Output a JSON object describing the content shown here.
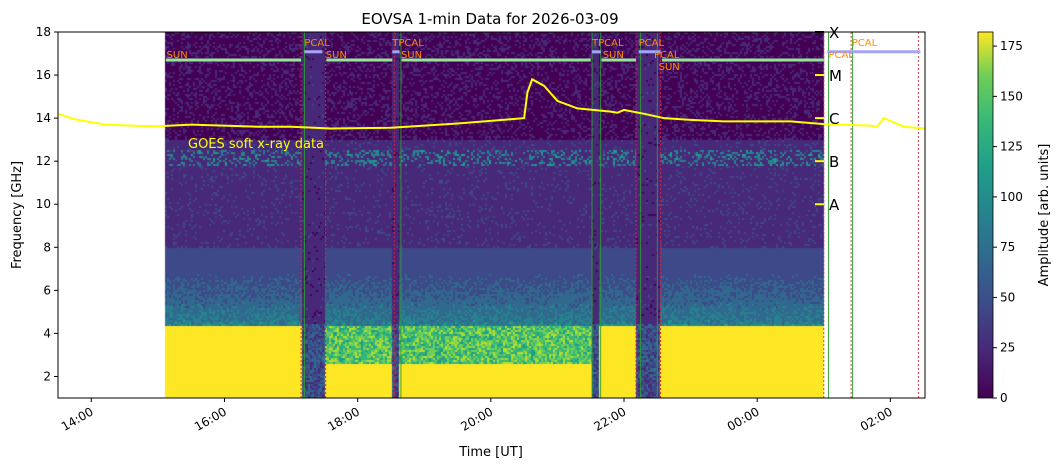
{
  "chart_data": {
    "type": "heatmap",
    "title": "EOVSA 1-min Data for 2026-03-09",
    "xlabel": "Time [UT]",
    "ylabel": "Frequency [GHz]",
    "colorbar_label": "Amplitude [arb. units]",
    "xlim_hours": [
      13.5,
      26.52
    ],
    "ylim": [
      1.0,
      18.0
    ],
    "clim": [
      0,
      182
    ],
    "x_ticks": [
      {
        "h": 14,
        "label": "14:00"
      },
      {
        "h": 16,
        "label": "16:00"
      },
      {
        "h": 18,
        "label": "18:00"
      },
      {
        "h": 20,
        "label": "20:00"
      },
      {
        "h": 22,
        "label": "22:00"
      },
      {
        "h": 24,
        "label": "00:00"
      },
      {
        "h": 26,
        "label": "02:00"
      }
    ],
    "y_ticks": [
      2,
      4,
      6,
      8,
      10,
      12,
      14,
      16,
      18
    ],
    "colorbar_ticks": [
      0,
      25,
      50,
      75,
      100,
      125,
      150,
      175
    ],
    "data_segments": [
      {
        "start": 15.12,
        "end": 17.17,
        "type": "sun"
      },
      {
        "start": 17.17,
        "end": 17.52,
        "type": "cal"
      },
      {
        "start": 17.52,
        "end": 18.52,
        "type": "sun"
      },
      {
        "start": 18.52,
        "end": 18.63,
        "type": "cal"
      },
      {
        "start": 18.63,
        "end": 21.52,
        "type": "sun"
      },
      {
        "start": 21.52,
        "end": 21.63,
        "type": "cal"
      },
      {
        "start": 21.63,
        "end": 22.18,
        "type": "sun"
      },
      {
        "start": 22.18,
        "end": 22.55,
        "type": "cal"
      },
      {
        "start": 22.55,
        "end": 25.0,
        "type": "sun"
      }
    ],
    "scan_labels": [
      {
        "h": 15.13,
        "label": "SUN"
      },
      {
        "h": 17.2,
        "label": "PCAL"
      },
      {
        "h": 17.52,
        "label": "SUN"
      },
      {
        "h": 18.52,
        "label": "TPCAL"
      },
      {
        "h": 18.65,
        "label": "SUN"
      },
      {
        "h": 21.52,
        "label": "TPCAL"
      },
      {
        "h": 21.68,
        "label": "SUN"
      },
      {
        "h": 22.22,
        "label": "PCAL"
      },
      {
        "h": 22.45,
        "label": "PCAL"
      },
      {
        "h": 22.52,
        "label": "SUN"
      },
      {
        "h": 25.07,
        "label": "PCAL"
      },
      {
        "h": 25.42,
        "label": "PCAL"
      }
    ],
    "sun_bars": [
      [
        15.12,
        17.15
      ],
      [
        17.53,
        18.52
      ],
      [
        18.66,
        21.5
      ],
      [
        21.66,
        22.18
      ],
      [
        22.57,
        25.0
      ]
    ],
    "pcal_bars": [
      [
        17.2,
        17.47
      ],
      [
        18.52,
        18.63
      ],
      [
        21.52,
        21.65
      ],
      [
        22.22,
        22.55
      ],
      [
        25.05,
        26.45
      ]
    ],
    "red_lines": [
      17.15,
      17.52,
      18.55,
      22.18,
      22.55,
      25.0,
      25.41,
      26.42
    ],
    "green_lines": [
      17.2,
      18.65,
      21.52,
      21.65,
      22.25,
      22.5,
      25.07,
      25.43
    ],
    "goes": {
      "label": "GOES soft x-ray data",
      "levels": [
        {
          "name": "A",
          "y": 10
        },
        {
          "name": "B",
          "y": 12
        },
        {
          "name": "C",
          "y": 14
        },
        {
          "name": "M",
          "y": 16
        },
        {
          "name": "X",
          "y": 18
        }
      ],
      "h": [
        13.5,
        13.75,
        14.2,
        14.6,
        15.0,
        15.5,
        16.5,
        17.0,
        17.6,
        18.5,
        19.5,
        19.9,
        20.3,
        20.5,
        20.55,
        20.62,
        20.8,
        21.0,
        21.3,
        21.8,
        21.9,
        22.0,
        22.3,
        22.6,
        23.0,
        23.5,
        23.9,
        24.5,
        25.0,
        25.7,
        25.8,
        25.9,
        26.2,
        26.52
      ],
      "y": [
        14.2,
        13.95,
        13.7,
        13.65,
        13.62,
        13.7,
        13.6,
        13.6,
        13.52,
        13.55,
        13.75,
        13.85,
        13.95,
        14.0,
        15.2,
        15.8,
        15.5,
        14.8,
        14.45,
        14.3,
        14.25,
        14.38,
        14.2,
        14.0,
        13.92,
        13.85,
        13.85,
        13.85,
        13.72,
        13.65,
        13.6,
        14.0,
        13.6,
        13.52
      ]
    }
  }
}
